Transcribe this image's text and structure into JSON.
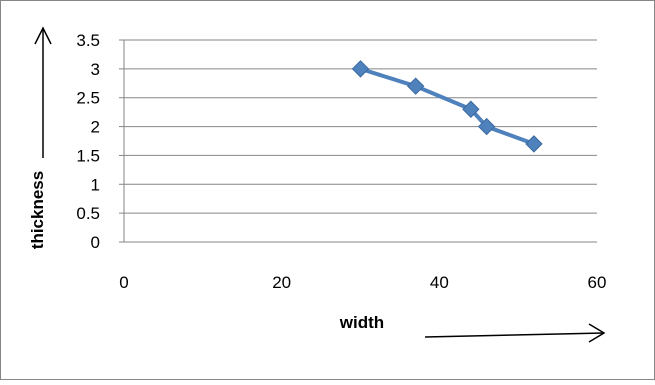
{
  "chart_data": {
    "type": "line",
    "xlabel": "width",
    "ylabel": "thickness",
    "xlim": [
      0,
      60
    ],
    "ylim": [
      0,
      3.5
    ],
    "x_ticks": [
      "0",
      "20",
      "40",
      "60"
    ],
    "y_ticks": [
      "0",
      "0.5",
      "1",
      "1.5",
      "2",
      "2.5",
      "3",
      "3.5"
    ],
    "grid": "horizontal",
    "legend": "none",
    "series": [
      {
        "color": "#4F81BD",
        "marker": "diamond",
        "x": [
          30,
          37,
          44,
          46,
          52
        ],
        "y": [
          3.0,
          2.7,
          2.3,
          2.0,
          1.7
        ]
      }
    ]
  }
}
